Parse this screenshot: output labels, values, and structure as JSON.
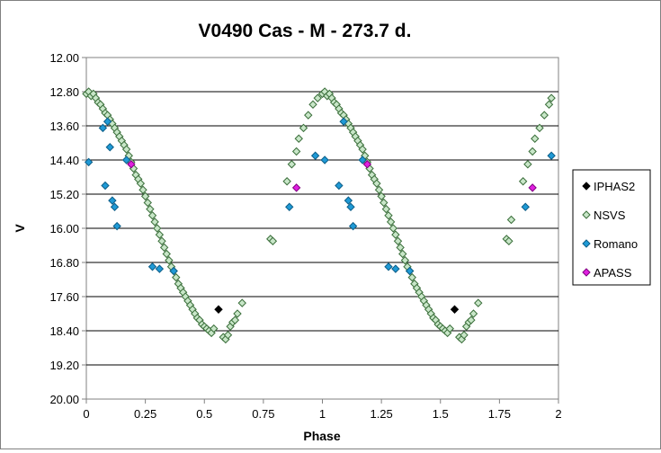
{
  "chart_data": {
    "type": "scatter",
    "title": "V0490 Cas - M - 273.7 d.",
    "xlabel": "Phase",
    "ylabel": "V",
    "xlim": [
      0,
      2
    ],
    "ylim": [
      12.0,
      20.0
    ],
    "y_inverted": true,
    "x_ticks": [
      "0",
      "0.25",
      "0.5",
      "0.75",
      "1",
      "1.25",
      "1.5",
      "1.75",
      "2"
    ],
    "y_ticks": [
      "12.00",
      "12.80",
      "13.60",
      "14.40",
      "15.20",
      "16.00",
      "16.80",
      "17.60",
      "18.40",
      "19.20",
      "20.00"
    ],
    "grid": "horizontal",
    "legend_position": "right",
    "series": [
      {
        "name": "IPHAS2",
        "marker": "diamond",
        "color": "#000000",
        "stroke": "#000000",
        "points": [
          [
            0.56,
            17.9
          ],
          [
            1.56,
            17.9
          ]
        ]
      },
      {
        "name": "NSVS",
        "marker": "diamond",
        "color": "#c8e6c8",
        "stroke": "#3a6e3a",
        "points": [
          [
            0.0,
            12.85
          ],
          [
            0.01,
            12.8
          ],
          [
            0.02,
            12.9
          ],
          [
            0.03,
            12.85
          ],
          [
            0.04,
            12.95
          ],
          [
            0.05,
            13.05
          ],
          [
            0.06,
            13.1
          ],
          [
            0.07,
            13.2
          ],
          [
            0.08,
            13.3
          ],
          [
            0.09,
            13.35
          ],
          [
            0.1,
            13.45
          ],
          [
            0.11,
            13.55
          ],
          [
            0.12,
            13.65
          ],
          [
            0.13,
            13.75
          ],
          [
            0.14,
            13.85
          ],
          [
            0.15,
            13.95
          ],
          [
            0.16,
            14.05
          ],
          [
            0.17,
            14.15
          ],
          [
            0.18,
            14.3
          ],
          [
            0.19,
            14.45
          ],
          [
            0.2,
            14.6
          ],
          [
            0.21,
            14.75
          ],
          [
            0.22,
            14.85
          ],
          [
            0.23,
            14.95
          ],
          [
            0.24,
            15.1
          ],
          [
            0.25,
            15.25
          ],
          [
            0.26,
            15.4
          ],
          [
            0.27,
            15.55
          ],
          [
            0.28,
            15.7
          ],
          [
            0.29,
            15.85
          ],
          [
            0.3,
            16.0
          ],
          [
            0.31,
            16.15
          ],
          [
            0.32,
            16.3
          ],
          [
            0.33,
            16.45
          ],
          [
            0.34,
            16.6
          ],
          [
            0.35,
            16.75
          ],
          [
            0.36,
            16.9
          ],
          [
            0.37,
            17.0
          ],
          [
            0.38,
            17.15
          ],
          [
            0.39,
            17.3
          ],
          [
            0.4,
            17.4
          ],
          [
            0.41,
            17.5
          ],
          [
            0.42,
            17.6
          ],
          [
            0.43,
            17.7
          ],
          [
            0.44,
            17.8
          ],
          [
            0.45,
            17.9
          ],
          [
            0.46,
            18.0
          ],
          [
            0.47,
            18.1
          ],
          [
            0.48,
            18.15
          ],
          [
            0.49,
            18.25
          ],
          [
            0.5,
            18.3
          ],
          [
            0.51,
            18.35
          ],
          [
            0.52,
            18.4
          ],
          [
            0.53,
            18.45
          ],
          [
            0.54,
            18.35
          ],
          [
            0.58,
            18.55
          ],
          [
            0.59,
            18.6
          ],
          [
            0.6,
            18.5
          ],
          [
            0.61,
            18.3
          ],
          [
            0.62,
            18.2
          ],
          [
            0.63,
            18.15
          ],
          [
            0.64,
            18.0
          ],
          [
            0.66,
            17.75
          ],
          [
            0.78,
            16.25
          ],
          [
            0.79,
            16.3
          ],
          [
            0.85,
            14.9
          ],
          [
            0.87,
            14.5
          ],
          [
            0.89,
            14.2
          ],
          [
            0.9,
            13.9
          ],
          [
            0.92,
            13.65
          ],
          [
            0.94,
            13.35
          ],
          [
            0.96,
            13.1
          ],
          [
            0.98,
            12.95
          ],
          [
            1.0,
            12.85
          ],
          [
            1.01,
            12.8
          ],
          [
            1.02,
            12.9
          ],
          [
            1.03,
            12.85
          ],
          [
            1.04,
            12.95
          ],
          [
            1.05,
            13.05
          ],
          [
            1.06,
            13.1
          ],
          [
            1.07,
            13.2
          ],
          [
            1.08,
            13.3
          ],
          [
            1.09,
            13.35
          ],
          [
            1.1,
            13.45
          ],
          [
            1.11,
            13.55
          ],
          [
            1.12,
            13.65
          ],
          [
            1.13,
            13.75
          ],
          [
            1.14,
            13.85
          ],
          [
            1.15,
            13.95
          ],
          [
            1.16,
            14.05
          ],
          [
            1.17,
            14.15
          ],
          [
            1.18,
            14.3
          ],
          [
            1.19,
            14.45
          ],
          [
            1.2,
            14.6
          ],
          [
            1.21,
            14.75
          ],
          [
            1.22,
            14.85
          ],
          [
            1.23,
            14.95
          ],
          [
            1.24,
            15.1
          ],
          [
            1.25,
            15.25
          ],
          [
            1.26,
            15.4
          ],
          [
            1.27,
            15.55
          ],
          [
            1.28,
            15.7
          ],
          [
            1.29,
            15.85
          ],
          [
            1.3,
            16.0
          ],
          [
            1.31,
            16.15
          ],
          [
            1.32,
            16.3
          ],
          [
            1.33,
            16.45
          ],
          [
            1.34,
            16.6
          ],
          [
            1.35,
            16.75
          ],
          [
            1.36,
            16.9
          ],
          [
            1.37,
            17.0
          ],
          [
            1.38,
            17.15
          ],
          [
            1.39,
            17.3
          ],
          [
            1.4,
            17.4
          ],
          [
            1.41,
            17.5
          ],
          [
            1.42,
            17.6
          ],
          [
            1.43,
            17.7
          ],
          [
            1.44,
            17.8
          ],
          [
            1.45,
            17.9
          ],
          [
            1.46,
            18.0
          ],
          [
            1.47,
            18.1
          ],
          [
            1.48,
            18.15
          ],
          [
            1.49,
            18.25
          ],
          [
            1.5,
            18.3
          ],
          [
            1.51,
            18.35
          ],
          [
            1.52,
            18.4
          ],
          [
            1.53,
            18.45
          ],
          [
            1.54,
            18.35
          ],
          [
            1.58,
            18.55
          ],
          [
            1.59,
            18.6
          ],
          [
            1.6,
            18.5
          ],
          [
            1.61,
            18.3
          ],
          [
            1.62,
            18.2
          ],
          [
            1.63,
            18.15
          ],
          [
            1.64,
            18.0
          ],
          [
            1.66,
            17.75
          ],
          [
            1.78,
            16.25
          ],
          [
            1.79,
            16.3
          ],
          [
            1.8,
            15.8
          ],
          [
            1.85,
            14.9
          ],
          [
            1.87,
            14.5
          ],
          [
            1.89,
            14.2
          ],
          [
            1.9,
            13.9
          ],
          [
            1.92,
            13.65
          ],
          [
            1.94,
            13.35
          ],
          [
            1.96,
            13.1
          ],
          [
            1.97,
            12.95
          ]
        ]
      },
      {
        "name": "Romano",
        "marker": "diamond",
        "color": "#1f9ad6",
        "stroke": "#0d5e88",
        "points": [
          [
            0.01,
            14.45
          ],
          [
            0.07,
            13.65
          ],
          [
            0.08,
            15.0
          ],
          [
            0.09,
            13.5
          ],
          [
            0.1,
            14.1
          ],
          [
            0.11,
            15.35
          ],
          [
            0.12,
            15.5
          ],
          [
            0.13,
            15.95
          ],
          [
            0.17,
            14.4
          ],
          [
            0.28,
            16.9
          ],
          [
            0.31,
            16.95
          ],
          [
            0.37,
            17.0
          ],
          [
            0.86,
            15.5
          ],
          [
            0.97,
            14.3
          ],
          [
            1.01,
            14.4
          ],
          [
            1.07,
            15.0
          ],
          [
            1.09,
            13.5
          ],
          [
            1.11,
            15.35
          ],
          [
            1.12,
            15.5
          ],
          [
            1.13,
            15.95
          ],
          [
            1.17,
            14.4
          ],
          [
            1.28,
            16.9
          ],
          [
            1.31,
            16.95
          ],
          [
            1.37,
            17.0
          ],
          [
            1.86,
            15.5
          ],
          [
            1.97,
            14.3
          ]
        ]
      },
      {
        "name": "APASS",
        "marker": "diamond",
        "color": "#e020e0",
        "stroke": "#800080",
        "points": [
          [
            0.19,
            14.5
          ],
          [
            0.89,
            15.05
          ],
          [
            1.19,
            14.5
          ],
          [
            1.89,
            15.05
          ]
        ]
      }
    ]
  }
}
